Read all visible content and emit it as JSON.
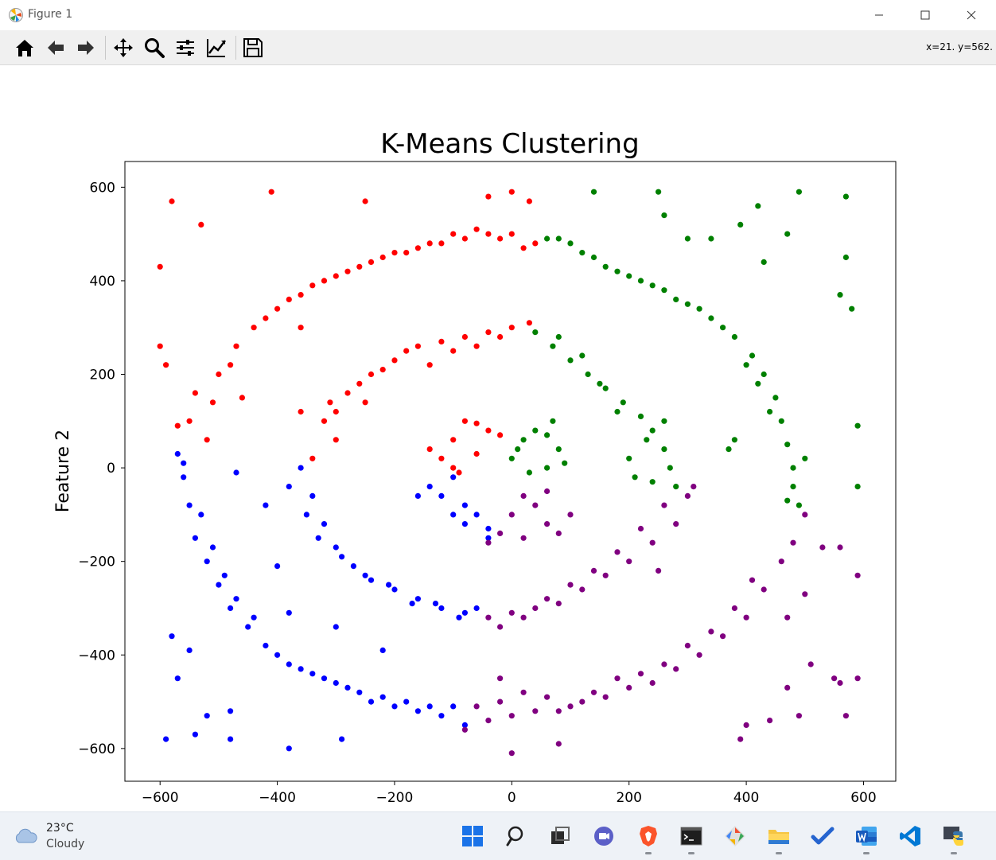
{
  "window": {
    "title": "Figure 1",
    "coords_readout": "x=21. y=562."
  },
  "toolbar": {
    "tools": [
      "home-icon",
      "back-arrow-icon",
      "forward-arrow-icon",
      "pan-icon",
      "zoom-icon",
      "configure-subplots-icon",
      "edit-axes-icon",
      "save-icon"
    ]
  },
  "taskbar": {
    "weather_temp": "23°C",
    "weather_condition": "Cloudy",
    "apps": [
      "start-icon",
      "search-icon",
      "task-view-icon",
      "teams-chat-icon",
      "brave-browser-icon",
      "terminal-icon",
      "git-icon",
      "file-explorer-icon",
      "todo-icon",
      "word-icon",
      "vscode-icon",
      "python-icon"
    ]
  },
  "chart_data": {
    "type": "scatter",
    "title": "K-Means Clustering",
    "xlabel": "",
    "ylabel": "Feature 2",
    "xlim": [
      -660,
      655
    ],
    "ylim": [
      -670,
      655
    ],
    "xticks": [
      -600,
      -400,
      -200,
      0,
      200,
      400,
      600
    ],
    "yticks": [
      600,
      400,
      200,
      0,
      -200,
      -400,
      -600
    ],
    "xtick_labels": [
      "−600",
      "−400",
      "−200",
      "0",
      "200",
      "400",
      "600"
    ],
    "ytick_labels": [
      "600",
      "400",
      "200",
      "0",
      "−200",
      "−400",
      "−600"
    ],
    "grid": false,
    "legend": "none",
    "description_of_structure": "",
    "series": [
      {
        "color": "#ff0000",
        "points": [
          [
            -120,
            20
          ],
          [
            -100,
            60
          ],
          [
            -80,
            100
          ],
          [
            -60,
            95
          ],
          [
            -40,
            80
          ],
          [
            -100,
            0
          ],
          [
            -140,
            40
          ],
          [
            -90,
            -10
          ],
          [
            -60,
            30
          ],
          [
            -20,
            70
          ],
          [
            -300,
            60
          ],
          [
            -320,
            100
          ],
          [
            -280,
            160
          ],
          [
            -240,
            200
          ],
          [
            -200,
            230
          ],
          [
            -160,
            260
          ],
          [
            -120,
            270
          ],
          [
            -80,
            280
          ],
          [
            -40,
            290
          ],
          [
            0,
            300
          ],
          [
            -340,
            20
          ],
          [
            -310,
            140
          ],
          [
            -260,
            180
          ],
          [
            -180,
            250
          ],
          [
            -140,
            220
          ],
          [
            -100,
            250
          ],
          [
            -60,
            260
          ],
          [
            -20,
            280
          ],
          [
            30,
            310
          ],
          [
            -220,
            210
          ],
          [
            -520,
            60
          ],
          [
            -510,
            140
          ],
          [
            -500,
            200
          ],
          [
            -470,
            260
          ],
          [
            -440,
            300
          ],
          [
            -400,
            340
          ],
          [
            -360,
            370
          ],
          [
            -320,
            400
          ],
          [
            -280,
            420
          ],
          [
            -240,
            440
          ],
          [
            -200,
            460
          ],
          [
            -160,
            470
          ],
          [
            -120,
            480
          ],
          [
            -80,
            490
          ],
          [
            -40,
            500
          ],
          [
            0,
            500
          ],
          [
            40,
            480
          ],
          [
            -480,
            220
          ],
          [
            -420,
            320
          ],
          [
            -380,
            360
          ],
          [
            -340,
            390
          ],
          [
            -300,
            410
          ],
          [
            -260,
            430
          ],
          [
            -220,
            450
          ],
          [
            -180,
            460
          ],
          [
            -140,
            480
          ],
          [
            -100,
            500
          ],
          [
            -60,
            510
          ],
          [
            -20,
            490
          ],
          [
            20,
            470
          ],
          [
            -600,
            260
          ],
          [
            -590,
            220
          ],
          [
            -570,
            90
          ],
          [
            -550,
            100
          ],
          [
            -600,
            430
          ],
          [
            -580,
            570
          ],
          [
            -530,
            520
          ],
          [
            -410,
            590
          ],
          [
            -250,
            570
          ],
          [
            -40,
            580
          ],
          [
            0,
            590
          ],
          [
            30,
            570
          ],
          [
            -360,
            120
          ],
          [
            -300,
            120
          ],
          [
            -250,
            140
          ],
          [
            -360,
            300
          ],
          [
            -460,
            150
          ],
          [
            -540,
            160
          ]
        ]
      },
      {
        "color": "#008000",
        "points": [
          [
            0,
            20
          ],
          [
            20,
            60
          ],
          [
            40,
            80
          ],
          [
            60,
            70
          ],
          [
            80,
            40
          ],
          [
            60,
            0
          ],
          [
            30,
            -10
          ],
          [
            90,
            10
          ],
          [
            70,
            100
          ],
          [
            10,
            40
          ],
          [
            40,
            290
          ],
          [
            70,
            260
          ],
          [
            100,
            230
          ],
          [
            130,
            200
          ],
          [
            160,
            170
          ],
          [
            190,
            140
          ],
          [
            220,
            110
          ],
          [
            240,
            80
          ],
          [
            260,
            40
          ],
          [
            270,
            0
          ],
          [
            240,
            -30
          ],
          [
            210,
            -20
          ],
          [
            180,
            120
          ],
          [
            150,
            180
          ],
          [
            120,
            240
          ],
          [
            80,
            280
          ],
          [
            260,
            100
          ],
          [
            230,
            60
          ],
          [
            200,
            20
          ],
          [
            280,
            -40
          ],
          [
            60,
            490
          ],
          [
            100,
            480
          ],
          [
            140,
            450
          ],
          [
            180,
            420
          ],
          [
            220,
            400
          ],
          [
            260,
            380
          ],
          [
            300,
            350
          ],
          [
            340,
            320
          ],
          [
            380,
            280
          ],
          [
            410,
            240
          ],
          [
            430,
            200
          ],
          [
            450,
            150
          ],
          [
            460,
            100
          ],
          [
            470,
            50
          ],
          [
            480,
            0
          ],
          [
            480,
            -40
          ],
          [
            470,
            -70
          ],
          [
            490,
            -80
          ],
          [
            440,
            120
          ],
          [
            420,
            180
          ],
          [
            400,
            220
          ],
          [
            360,
            300
          ],
          [
            320,
            340
          ],
          [
            280,
            360
          ],
          [
            240,
            390
          ],
          [
            200,
            410
          ],
          [
            160,
            430
          ],
          [
            120,
            460
          ],
          [
            80,
            490
          ],
          [
            500,
            20
          ],
          [
            140,
            590
          ],
          [
            250,
            590
          ],
          [
            260,
            540
          ],
          [
            300,
            490
          ],
          [
            340,
            490
          ],
          [
            390,
            520
          ],
          [
            420,
            560
          ],
          [
            490,
            590
          ],
          [
            570,
            580
          ],
          [
            570,
            450
          ],
          [
            580,
            340
          ],
          [
            560,
            370
          ],
          [
            590,
            90
          ],
          [
            590,
            -40
          ],
          [
            370,
            40
          ],
          [
            380,
            60
          ],
          [
            430,
            440
          ],
          [
            470,
            500
          ]
        ]
      },
      {
        "color": "#0000ff",
        "points": [
          [
            -100,
            -20
          ],
          [
            -120,
            -60
          ],
          [
            -100,
            -100
          ],
          [
            -80,
            -120
          ],
          [
            -40,
            -130
          ],
          [
            -140,
            -40
          ],
          [
            -80,
            -80
          ],
          [
            -60,
            -100
          ],
          [
            -160,
            -60
          ],
          [
            -40,
            -150
          ],
          [
            -360,
            0
          ],
          [
            -340,
            -60
          ],
          [
            -320,
            -120
          ],
          [
            -300,
            -170
          ],
          [
            -270,
            -210
          ],
          [
            -240,
            -240
          ],
          [
            -200,
            -260
          ],
          [
            -160,
            -280
          ],
          [
            -120,
            -300
          ],
          [
            -80,
            -310
          ],
          [
            -380,
            -40
          ],
          [
            -350,
            -100
          ],
          [
            -330,
            -150
          ],
          [
            -290,
            -190
          ],
          [
            -250,
            -230
          ],
          [
            -210,
            -250
          ],
          [
            -170,
            -290
          ],
          [
            -130,
            -290
          ],
          [
            -90,
            -320
          ],
          [
            -60,
            -300
          ],
          [
            -560,
            -20
          ],
          [
            -550,
            -80
          ],
          [
            -540,
            -150
          ],
          [
            -520,
            -200
          ],
          [
            -500,
            -250
          ],
          [
            -480,
            -300
          ],
          [
            -450,
            -340
          ],
          [
            -420,
            -380
          ],
          [
            -380,
            -420
          ],
          [
            -340,
            -440
          ],
          [
            -300,
            -460
          ],
          [
            -260,
            -480
          ],
          [
            -220,
            -490
          ],
          [
            -180,
            -500
          ],
          [
            -140,
            -510
          ],
          [
            -100,
            -510
          ],
          [
            -80,
            -550
          ],
          [
            -530,
            -100
          ],
          [
            -510,
            -170
          ],
          [
            -490,
            -230
          ],
          [
            -470,
            -280
          ],
          [
            -440,
            -320
          ],
          [
            -400,
            -400
          ],
          [
            -360,
            -430
          ],
          [
            -320,
            -450
          ],
          [
            -280,
            -470
          ],
          [
            -240,
            -500
          ],
          [
            -200,
            -510
          ],
          [
            -160,
            -520
          ],
          [
            -120,
            -530
          ],
          [
            -590,
            -580
          ],
          [
            -580,
            -360
          ],
          [
            -570,
            -450
          ],
          [
            -550,
            -390
          ],
          [
            -540,
            -570
          ],
          [
            -520,
            -530
          ],
          [
            -480,
            -520
          ],
          [
            -480,
            -580
          ],
          [
            -380,
            -600
          ],
          [
            -290,
            -580
          ],
          [
            -570,
            30
          ],
          [
            -560,
            10
          ],
          [
            -470,
            -10
          ],
          [
            -420,
            -80
          ],
          [
            -400,
            -210
          ],
          [
            -380,
            -310
          ],
          [
            -300,
            -340
          ],
          [
            -220,
            -390
          ]
        ]
      },
      {
        "color": "#800080",
        "points": [
          [
            0,
            -100
          ],
          [
            20,
            -60
          ],
          [
            40,
            -80
          ],
          [
            60,
            -120
          ],
          [
            80,
            -140
          ],
          [
            60,
            -50
          ],
          [
            100,
            -100
          ],
          [
            -20,
            -140
          ],
          [
            -40,
            -160
          ],
          [
            20,
            -150
          ],
          [
            -40,
            -320
          ],
          [
            0,
            -310
          ],
          [
            40,
            -300
          ],
          [
            80,
            -290
          ],
          [
            120,
            -260
          ],
          [
            160,
            -230
          ],
          [
            200,
            -200
          ],
          [
            240,
            -160
          ],
          [
            280,
            -120
          ],
          [
            300,
            -60
          ],
          [
            260,
            -80
          ],
          [
            220,
            -130
          ],
          [
            180,
            -180
          ],
          [
            140,
            -220
          ],
          [
            100,
            -250
          ],
          [
            60,
            -280
          ],
          [
            20,
            -320
          ],
          [
            -20,
            -340
          ],
          [
            310,
            -40
          ],
          [
            250,
            -220
          ],
          [
            -80,
            -560
          ],
          [
            -40,
            -540
          ],
          [
            0,
            -530
          ],
          [
            40,
            -520
          ],
          [
            80,
            -520
          ],
          [
            120,
            -500
          ],
          [
            160,
            -490
          ],
          [
            200,
            -470
          ],
          [
            240,
            -460
          ],
          [
            280,
            -430
          ],
          [
            320,
            -400
          ],
          [
            360,
            -360
          ],
          [
            400,
            -320
          ],
          [
            430,
            -260
          ],
          [
            460,
            -200
          ],
          [
            480,
            -160
          ],
          [
            500,
            -100
          ],
          [
            -60,
            -510
          ],
          [
            -20,
            -500
          ],
          [
            20,
            -480
          ],
          [
            60,
            -490
          ],
          [
            100,
            -510
          ],
          [
            140,
            -480
          ],
          [
            180,
            -450
          ],
          [
            220,
            -440
          ],
          [
            260,
            -420
          ],
          [
            300,
            -380
          ],
          [
            340,
            -350
          ],
          [
            380,
            -300
          ],
          [
            410,
            -240
          ],
          [
            -20,
            -450
          ],
          [
            0,
            -610
          ],
          [
            80,
            -590
          ],
          [
            390,
            -580
          ],
          [
            400,
            -550
          ],
          [
            440,
            -540
          ],
          [
            470,
            -470
          ],
          [
            490,
            -530
          ],
          [
            510,
            -420
          ],
          [
            550,
            -450
          ],
          [
            560,
            -460
          ],
          [
            570,
            -530
          ],
          [
            590,
            -450
          ],
          [
            590,
            -230
          ],
          [
            500,
            -270
          ],
          [
            530,
            -170
          ],
          [
            560,
            -170
          ],
          [
            470,
            -320
          ]
        ]
      }
    ]
  }
}
